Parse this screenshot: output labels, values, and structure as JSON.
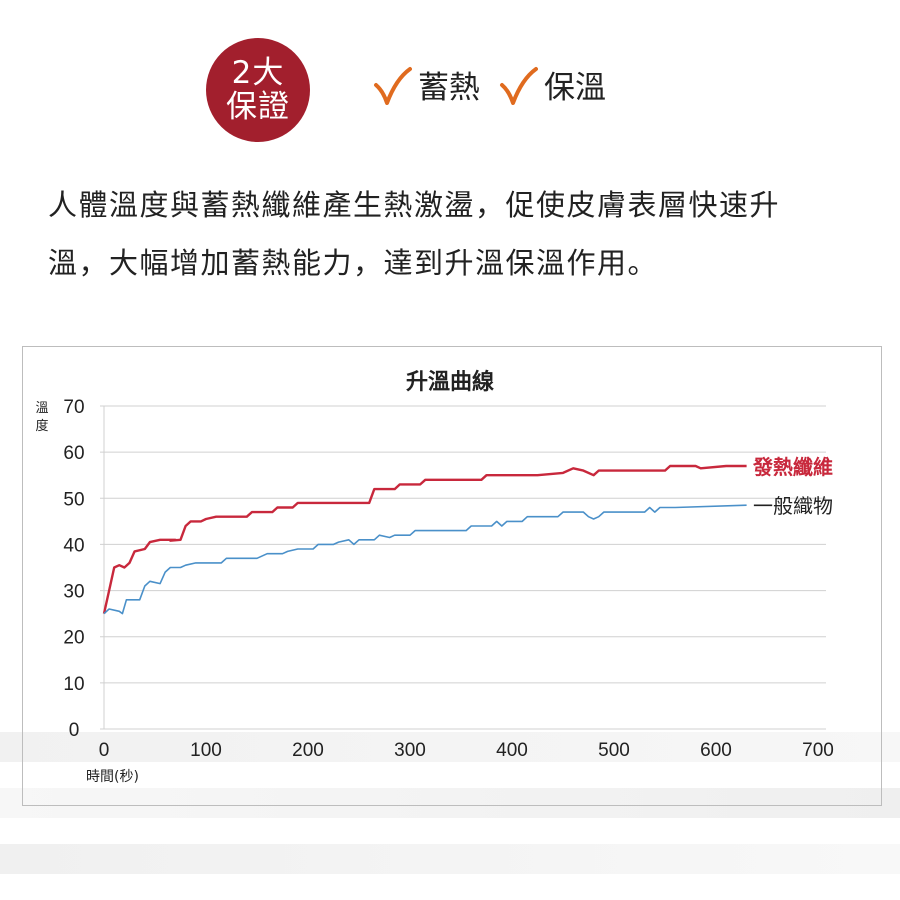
{
  "badge": {
    "line1": "2大",
    "line2": "保證"
  },
  "checks": [
    {
      "label": "蓄熱"
    },
    {
      "label": "保溫"
    }
  ],
  "paragraph": {
    "line1": "人體溫度與蓄熱纖維產生熱激盪，促使皮膚表層快速升",
    "line2": "溫，大幅增加蓄熱能力，達到升溫保溫作用。"
  },
  "colors": {
    "badge": "#a21f2d",
    "check": "#e06b1f",
    "heat_series": "#c8283c",
    "normal_series": "#4a90c9"
  },
  "chart_data": {
    "type": "line",
    "title": "升溫曲線",
    "xlabel": "時間(秒)",
    "ylabel": "溫度",
    "xlim": [
      0,
      700
    ],
    "ylim": [
      0,
      70
    ],
    "xticks": [
      0,
      100,
      200,
      300,
      400,
      500,
      600,
      700
    ],
    "yticks": [
      0,
      10,
      20,
      30,
      40,
      50,
      60,
      70
    ],
    "grid": true,
    "legend": "right, end of lines",
    "series": [
      {
        "name": "發熱纖維",
        "points": [
          [
            0,
            25
          ],
          [
            5,
            30
          ],
          [
            10,
            35
          ],
          [
            15,
            35.5
          ],
          [
            20,
            35
          ],
          [
            25,
            36
          ],
          [
            30,
            38.5
          ],
          [
            40,
            39
          ],
          [
            45,
            40.5
          ],
          [
            55,
            41
          ],
          [
            70,
            41
          ],
          [
            65,
            40.8
          ],
          [
            75,
            41
          ],
          [
            80,
            44
          ],
          [
            85,
            45
          ],
          [
            95,
            45
          ],
          [
            100,
            45.5
          ],
          [
            110,
            46
          ],
          [
            140,
            46
          ],
          [
            145,
            47
          ],
          [
            165,
            47
          ],
          [
            170,
            48
          ],
          [
            185,
            48
          ],
          [
            190,
            49
          ],
          [
            260,
            49
          ],
          [
            265,
            52
          ],
          [
            285,
            52
          ],
          [
            290,
            53
          ],
          [
            310,
            53
          ],
          [
            315,
            54
          ],
          [
            370,
            54
          ],
          [
            375,
            55
          ],
          [
            425,
            55
          ],
          [
            450,
            55.5
          ],
          [
            460,
            56.5
          ],
          [
            470,
            56
          ],
          [
            480,
            55
          ],
          [
            485,
            56
          ],
          [
            550,
            56
          ],
          [
            555,
            57
          ],
          [
            580,
            57
          ],
          [
            585,
            56.5
          ],
          [
            610,
            57
          ],
          [
            630,
            57
          ]
        ]
      },
      {
        "name": "一般織物",
        "points": [
          [
            0,
            25
          ],
          [
            5,
            26
          ],
          [
            15,
            25.5
          ],
          [
            18,
            25
          ],
          [
            22,
            28
          ],
          [
            35,
            28
          ],
          [
            40,
            31
          ],
          [
            45,
            32
          ],
          [
            55,
            31.5
          ],
          [
            60,
            34
          ],
          [
            65,
            35
          ],
          [
            75,
            35
          ],
          [
            80,
            35.5
          ],
          [
            90,
            36
          ],
          [
            115,
            36
          ],
          [
            120,
            37
          ],
          [
            150,
            37
          ],
          [
            160,
            38
          ],
          [
            175,
            38
          ],
          [
            180,
            38.5
          ],
          [
            190,
            39
          ],
          [
            205,
            39
          ],
          [
            210,
            40
          ],
          [
            225,
            40
          ],
          [
            230,
            40.5
          ],
          [
            240,
            41
          ],
          [
            245,
            40
          ],
          [
            250,
            41
          ],
          [
            265,
            41
          ],
          [
            270,
            42
          ],
          [
            280,
            41.5
          ],
          [
            285,
            42
          ],
          [
            300,
            42
          ],
          [
            305,
            43
          ],
          [
            355,
            43
          ],
          [
            360,
            44
          ],
          [
            380,
            44
          ],
          [
            385,
            45
          ],
          [
            390,
            44
          ],
          [
            395,
            45
          ],
          [
            410,
            45
          ],
          [
            415,
            46
          ],
          [
            445,
            46
          ],
          [
            450,
            47
          ],
          [
            470,
            47
          ],
          [
            475,
            46
          ],
          [
            480,
            45.5
          ],
          [
            485,
            46
          ],
          [
            490,
            47
          ],
          [
            530,
            47
          ],
          [
            535,
            48
          ],
          [
            540,
            47
          ],
          [
            545,
            48
          ],
          [
            560,
            48
          ],
          [
            630,
            48.5
          ]
        ]
      }
    ]
  }
}
